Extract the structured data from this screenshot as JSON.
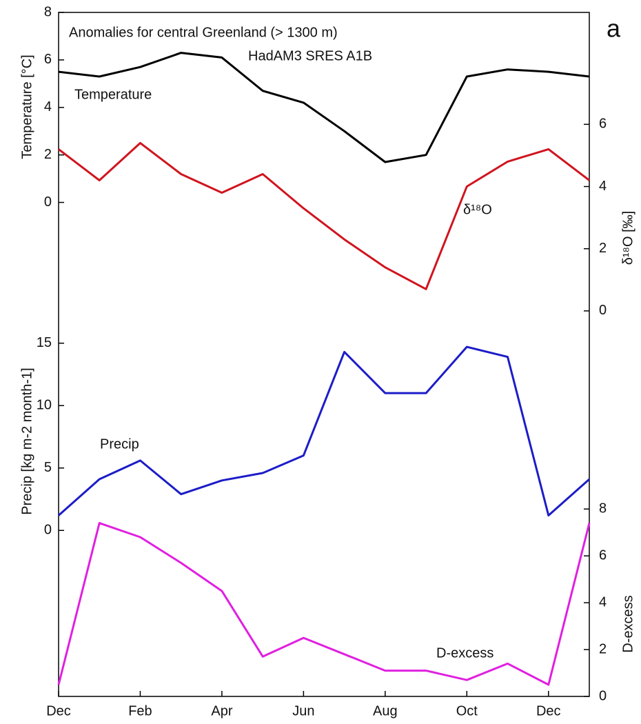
{
  "chart_data": {
    "type": "line",
    "title": "Anomalies for  central Greenland (> 1300 m)",
    "subtitle": "HadAM3 SRES A1B",
    "panel_label": "a",
    "categories": [
      "Dec",
      null,
      "Feb",
      null,
      "Apr",
      null,
      "Jun",
      null,
      "Aug",
      null,
      "Oct",
      null,
      "Dec",
      null
    ],
    "series": [
      {
        "name": "Temperature",
        "color": "#000000",
        "axis": "left",
        "ylabel": "Temperature [°C]",
        "ylim": [
          -20.8,
          8
        ],
        "yticks": [
          0,
          2,
          4,
          6,
          8
        ],
        "values": [
          5.5,
          5.3,
          5.7,
          6.3,
          6.1,
          4.7,
          4.2,
          3.0,
          1.7,
          2.0,
          5.3,
          5.6,
          5.5,
          5.3
        ]
      },
      {
        "name": "δ¹⁸O",
        "color": "#d0141e",
        "axis": "right",
        "ylabel": "δ¹⁸O [‰]",
        "ylim": [
          -12.4,
          9.6
        ],
        "yticks": [
          0,
          2,
          4,
          6
        ],
        "values": [
          5.2,
          4.2,
          5.4,
          4.4,
          3.8,
          4.4,
          3.3,
          2.3,
          1.4,
          0.7,
          4.0,
          4.8,
          5.2,
          4.2
        ]
      },
      {
        "name": "Precip",
        "color": "#1c1cc8",
        "axis": "left",
        "ylabel": "Precip [kg m-2 month-1]",
        "ylim": [
          -13.3,
          41.5
        ],
        "yticks": [
          0,
          5,
          10,
          15
        ],
        "values": [
          1.2,
          4.1,
          5.6,
          2.9,
          4.0,
          4.6,
          6.0,
          14.3,
          11.0,
          11.0,
          14.7,
          13.9,
          1.2,
          4.1
        ]
      },
      {
        "name": "D-excess",
        "color": "#e020e0",
        "axis": "right",
        "ylabel": "D-excess",
        "ylim": [
          0,
          29.2
        ],
        "yticks": [
          0,
          2,
          4,
          6,
          8
        ],
        "values": [
          0.5,
          7.4,
          6.8,
          5.7,
          4.5,
          1.7,
          2.5,
          1.8,
          1.1,
          1.1,
          0.7,
          1.4,
          0.5,
          7.4
        ]
      }
    ]
  }
}
